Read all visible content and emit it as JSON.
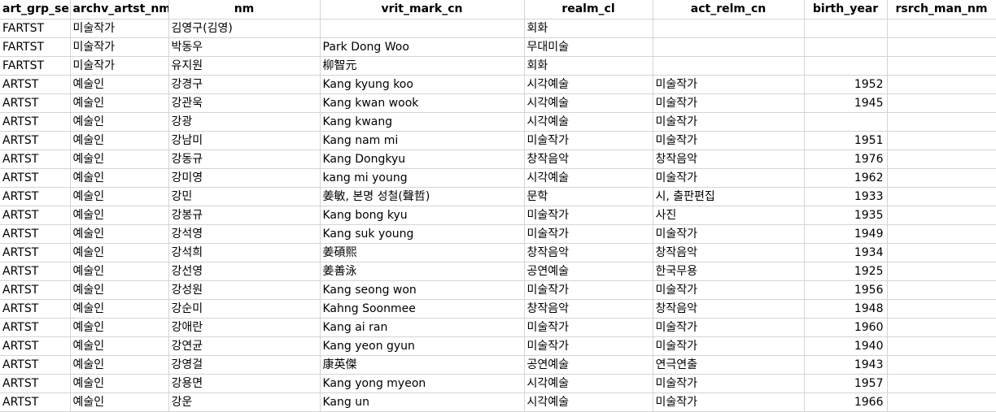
{
  "columns": [
    "art_grp_se",
    "archv_artst_nm",
    "nm",
    "vrit_mark_cn",
    "realm_cl",
    "act_relm_cn",
    "birth_year",
    "rsrch_man_nm"
  ],
  "rows": [
    [
      "FARTST",
      "미술작가",
      "김영구(김영)",
      "",
      "회화",
      "",
      "",
      ""
    ],
    [
      "FARTST",
      "미술작가",
      "박동우",
      "Park Dong Woo",
      "무대미술",
      "",
      "",
      ""
    ],
    [
      "FARTST",
      "미술작가",
      "유지원",
      "柳智元",
      "회화",
      "",
      "",
      ""
    ],
    [
      "ARTST",
      "예술인",
      "강경구",
      "Kang kyung koo",
      "시각예술",
      "미술작가",
      "1952",
      ""
    ],
    [
      "ARTST",
      "예술인",
      "강관욱",
      "Kang kwan wook",
      "시각예술",
      "미술작가",
      "1945",
      ""
    ],
    [
      "ARTST",
      "예술인",
      "강광",
      "Kang kwang",
      "시각예술",
      "미술작가",
      "",
      ""
    ],
    [
      "ARTST",
      "예술인",
      "강남미",
      "Kang nam mi",
      "미술작가",
      "미술작가",
      "1951",
      ""
    ],
    [
      "ARTST",
      "예술인",
      "강동규",
      "Kang Dongkyu",
      "창작음악",
      "창작음악",
      "1976",
      ""
    ],
    [
      "ARTST",
      "예술인",
      "강미영",
      "kang mi young",
      "시각예술",
      "미술작가",
      "1962",
      ""
    ],
    [
      "ARTST",
      "예술인",
      "강민",
      "姜敏, 본명 성철(聲哲)",
      "문학",
      "시, 출판편집",
      "1933",
      ""
    ],
    [
      "ARTST",
      "예술인",
      "강봉규",
      "Kang bong kyu",
      "미술작가",
      "사진",
      "1935",
      ""
    ],
    [
      "ARTST",
      "예술인",
      "강석영",
      "Kang suk young",
      "미술작가",
      "미술작가",
      "1949",
      ""
    ],
    [
      "ARTST",
      "예술인",
      "강석희",
      "姜碩熙",
      "창작음악",
      "창작음악",
      "1934",
      ""
    ],
    [
      "ARTST",
      "예술인",
      "강선영",
      "姜善泳",
      "공연예술",
      "한국무용",
      "1925",
      ""
    ],
    [
      "ARTST",
      "예술인",
      "강성원",
      "Kang seong won",
      "미술작가",
      "미술작가",
      "1956",
      ""
    ],
    [
      "ARTST",
      "예술인",
      "강순미",
      "Kahng Soonmee",
      "창작음악",
      "창작음악",
      "1948",
      ""
    ],
    [
      "ARTST",
      "예술인",
      "강애란",
      "Kang ai ran",
      "미술작가",
      "미술작가",
      "1960",
      ""
    ],
    [
      "ARTST",
      "예술인",
      "강연균",
      "Kang yeon gyun",
      "미술작가",
      "미술작가",
      "1940",
      ""
    ],
    [
      "ARTST",
      "예술인",
      "강영걸",
      "康英傑",
      "공연예술",
      "연극연출",
      "1943",
      ""
    ],
    [
      "ARTST",
      "예술인",
      "강용면",
      "Kang yong myeon",
      "시각예술",
      "미술작가",
      "1957",
      ""
    ],
    [
      "ARTST",
      "예술인",
      "강운",
      "Kang un",
      "시각예술",
      "미술작가",
      "1966",
      ""
    ]
  ]
}
